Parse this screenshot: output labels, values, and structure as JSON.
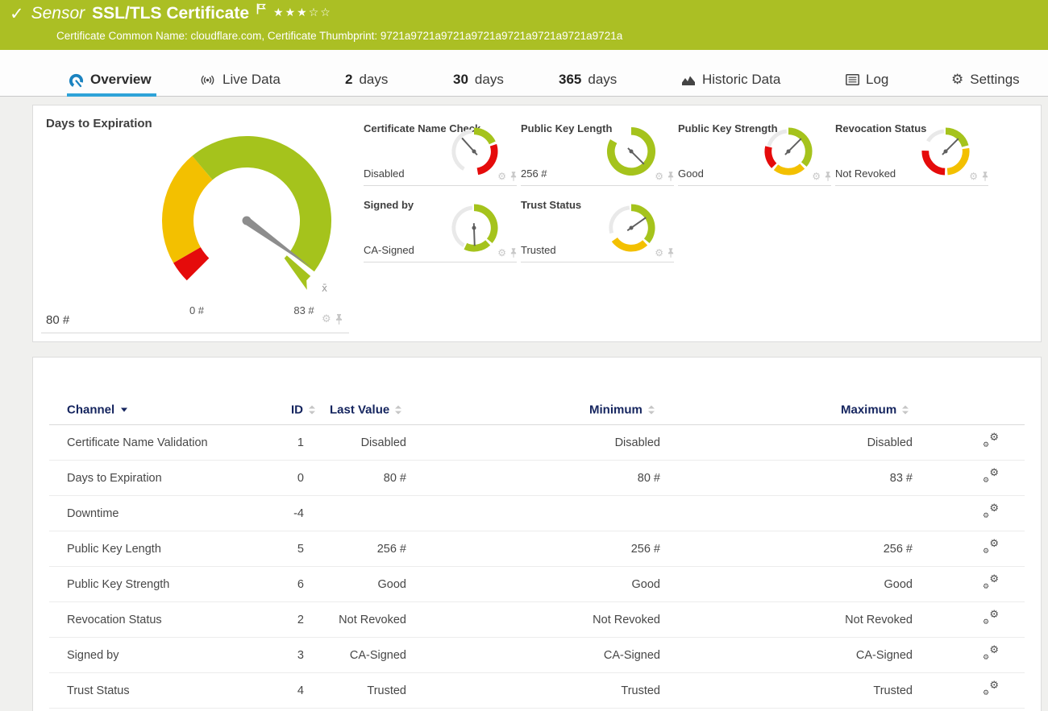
{
  "colors": {
    "header_green": "#abbf24",
    "gauge_green": "#a5c31c",
    "gauge_amber": "#f3c000",
    "gauge_red": "#e50b0b",
    "gauge_gray": "#e9e9e9",
    "accent_blue": "#2ea3d8",
    "table_header_navy": "#14245e"
  },
  "header": {
    "check": "✓",
    "kind": "Sensor",
    "title": "SSL/TLS Certificate",
    "rating_filled": 3,
    "rating_total": 5,
    "subtitle": "Certificate Common Name: cloudflare.com, Certificate Thumbprint: 9721a9721a9721a9721a9721a9721a9721a9721a"
  },
  "tabs": [
    {
      "label": "Overview",
      "active": true
    },
    {
      "label": "Live Data"
    },
    {
      "prefix": "2",
      "label": "days"
    },
    {
      "prefix": "30",
      "label": "days"
    },
    {
      "prefix": "365",
      "label": "days"
    },
    {
      "label": "Historic Data"
    },
    {
      "label": "Log"
    },
    {
      "label": "Settings"
    }
  ],
  "chart_data": [
    {
      "type": "gauge",
      "title": "Days to Expiration",
      "value": 80,
      "min": 0,
      "max": 83,
      "value_label": "80 #",
      "min_label": "0 #",
      "max_label": "83 #",
      "mean_marker": "x̄",
      "needle_angle": 126,
      "span": [
        -135,
        135
      ],
      "segments": [
        {
          "from": -135,
          "to": -120,
          "color": "#e50b0b"
        },
        {
          "from": -120,
          "to": -40,
          "color": "#f3c000"
        },
        {
          "from": -40,
          "to": 127,
          "color": "#a5c31c"
        }
      ]
    },
    {
      "type": "gauge",
      "title": "Certificate Name Check",
      "value_label": "Disabled",
      "needle_angle": -42,
      "segments": [
        {
          "from": -150,
          "to": -5,
          "color": "#e9e9e9",
          "w": 5
        },
        {
          "from": 0,
          "to": 65,
          "color": "#a5c31c",
          "w": 9
        },
        {
          "from": 72,
          "to": 170,
          "color": "#e50b0b",
          "w": 9
        }
      ]
    },
    {
      "type": "gauge",
      "title": "Public Key Length",
      "value_label": "256 #",
      "needle_angle": 135,
      "segments": [
        {
          "from": 0,
          "to": 300,
          "color": "#a5c31c",
          "w": 10
        }
      ]
    },
    {
      "type": "gauge",
      "title": "Public Key Strength",
      "value_label": "Good",
      "needle_angle": 45,
      "segments": [
        {
          "from": -75,
          "to": -5,
          "color": "#e9e9e9",
          "w": 5
        },
        {
          "from": 0,
          "to": 130,
          "color": "#a5c31c",
          "w": 9
        },
        {
          "from": 137,
          "to": 218,
          "color": "#f3c000",
          "w": 9
        },
        {
          "from": 225,
          "to": 283,
          "color": "#e50b0b",
          "w": 9
        }
      ]
    },
    {
      "type": "gauge",
      "title": "Revocation Status",
      "value_label": "Not Revoked",
      "needle_angle": 45,
      "segments": [
        {
          "from": -60,
          "to": -5,
          "color": "#e9e9e9",
          "w": 5
        },
        {
          "from": 0,
          "to": 75,
          "color": "#a5c31c",
          "w": 9
        },
        {
          "from": 82,
          "to": 175,
          "color": "#f3c000",
          "w": 9
        },
        {
          "from": 182,
          "to": 272,
          "color": "#e50b0b",
          "w": 9
        }
      ]
    },
    {
      "type": "gauge",
      "title": "Signed by",
      "value_label": "CA-Signed",
      "needle_angle": 178,
      "segments": [
        {
          "from": -150,
          "to": -5,
          "color": "#e9e9e9",
          "w": 5
        },
        {
          "from": 0,
          "to": 130,
          "color": "#a5c31c",
          "w": 9
        },
        {
          "from": 137,
          "to": 205,
          "color": "#a5c31c",
          "w": 9
        }
      ]
    },
    {
      "type": "gauge",
      "title": "Trust Status",
      "value_label": "Trusted",
      "needle_angle": 55,
      "segments": [
        {
          "from": -105,
          "to": -5,
          "color": "#e9e9e9",
          "w": 5
        },
        {
          "from": 0,
          "to": 130,
          "color": "#a5c31c",
          "w": 9
        },
        {
          "from": 137,
          "to": 235,
          "color": "#f3c000",
          "w": 9
        }
      ]
    }
  ],
  "table": {
    "headers": {
      "channel": "Channel",
      "id": "ID",
      "last": "Last Value",
      "min": "Minimum",
      "max": "Maximum"
    },
    "rows": [
      {
        "channel": "Certificate Name Validation",
        "id": "1",
        "last": "Disabled",
        "min": "Disabled",
        "max": "Disabled"
      },
      {
        "channel": "Days to Expiration",
        "id": "0",
        "last": "80 #",
        "min": "80 #",
        "max": "83 #"
      },
      {
        "channel": "Downtime",
        "id": "-4",
        "last": "",
        "min": "",
        "max": ""
      },
      {
        "channel": "Public Key Length",
        "id": "5",
        "last": "256 #",
        "min": "256 #",
        "max": "256 #"
      },
      {
        "channel": "Public Key Strength",
        "id": "6",
        "last": "Good",
        "min": "Good",
        "max": "Good"
      },
      {
        "channel": "Revocation Status",
        "id": "2",
        "last": "Not Revoked",
        "min": "Not Revoked",
        "max": "Not Revoked"
      },
      {
        "channel": "Signed by",
        "id": "3",
        "last": "CA-Signed",
        "min": "CA-Signed",
        "max": "CA-Signed"
      },
      {
        "channel": "Trust Status",
        "id": "4",
        "last": "Trusted",
        "min": "Trusted",
        "max": "Trusted"
      }
    ]
  }
}
